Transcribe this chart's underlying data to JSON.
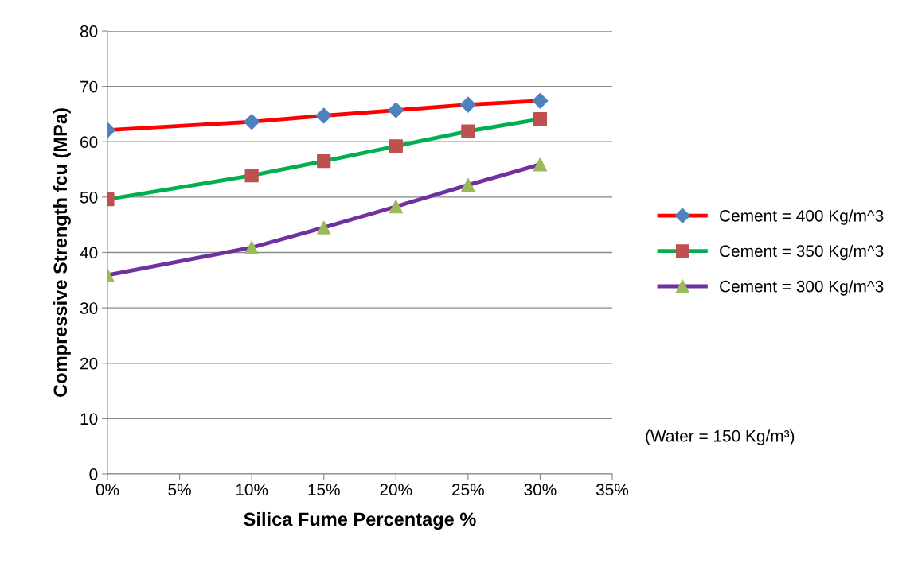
{
  "chart_data": {
    "type": "line",
    "xlabel": "Silica Fume Percentage %",
    "ylabel": "Compressive Strength fcu (MPa)",
    "x": [
      0,
      10,
      15,
      20,
      25,
      30
    ],
    "series": [
      {
        "name": "Cement = 400 Kg/m^3",
        "color": "#ff0000",
        "marker": "diamond",
        "colors": [
          "#4f81bd",
          "#4f81bd",
          "#4f81bd",
          "#4f81bd",
          "#4f81bd",
          "#4f81bd"
        ],
        "values": [
          62.1,
          63.6,
          64.7,
          65.7,
          66.7,
          67.4
        ]
      },
      {
        "name": "Cement = 350 Kg/m^3",
        "color": "#00b050",
        "marker": "square",
        "colors": [
          "#c0504d",
          "#c0504d",
          "#c0504d",
          "#c0504d",
          "#c0504d",
          "#c0504d"
        ],
        "values": [
          49.6,
          53.9,
          56.5,
          59.2,
          61.9,
          64.1
        ]
      },
      {
        "name": "Cement = 300 Kg/m^3",
        "color": "#7030a0",
        "marker": "triangle",
        "colors": [
          "#9bbb59",
          "#9bbb59",
          "#9bbb59",
          "#9bbb59",
          "#9bbb59",
          "#9bbb59"
        ],
        "values": [
          35.9,
          40.9,
          44.5,
          48.3,
          52.2,
          55.9
        ]
      }
    ],
    "xlim": [
      0,
      35
    ],
    "xticks": [
      {
        "value": 0,
        "label": "0%"
      },
      {
        "value": 5,
        "label": "5%"
      },
      {
        "value": 10,
        "label": "10%"
      },
      {
        "value": 15,
        "label": "15%"
      },
      {
        "value": 20,
        "label": "20%"
      },
      {
        "value": 25,
        "label": "25%"
      },
      {
        "value": 30,
        "label": "30%"
      },
      {
        "value": 35,
        "label": "35%"
      }
    ],
    "ylim": [
      0,
      80
    ],
    "yticks": [
      0,
      10,
      20,
      30,
      40,
      50,
      60,
      70,
      80
    ],
    "grid": "y",
    "legend": "right",
    "line_style": "solid",
    "annotations": [
      "(Water = 150 Kg/m³)"
    ]
  }
}
